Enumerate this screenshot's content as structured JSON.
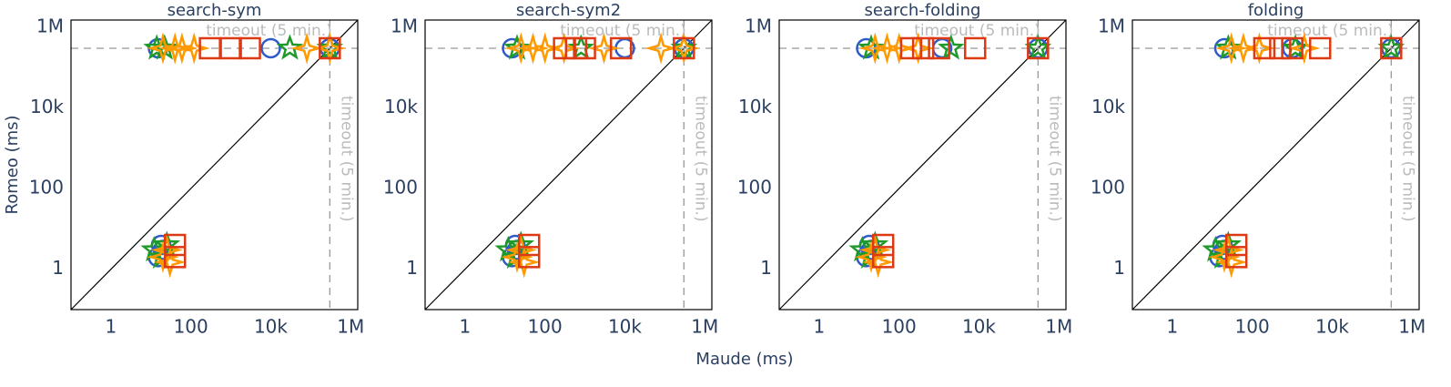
{
  "chart_data": [
    {
      "type": "scatter",
      "title": "search-sym",
      "log_x": true,
      "log_y": true,
      "xlim": [
        0.1,
        1500000
      ],
      "ylim": [
        0.1,
        1500000
      ],
      "xticks": [
        1,
        100,
        {
          "value": 10000,
          "label": "10k"
        },
        {
          "value": 1000000,
          "label": "1M"
        }
      ],
      "yticks": [
        1,
        100,
        {
          "value": 10000,
          "label": "10k"
        },
        {
          "value": 1000000,
          "label": "1M"
        }
      ],
      "hline": {
        "value": 300000,
        "label": "timeout (5 min.)"
      },
      "vline": {
        "value": 300000,
        "label": "timeout (5 min.)"
      },
      "series": [
        {
          "color": "#2e5bc9",
          "symbol": "circle",
          "x": [
            15,
            20,
            18,
            15,
            10000,
            300000
          ],
          "values": [
            2,
            3,
            4,
            300000,
            300000,
            300000
          ]
        },
        {
          "color": "#1f9a2a",
          "symbol": "star",
          "x": [
            12,
            18,
            25,
            14,
            22,
            30000,
            300000
          ],
          "values": [
            3,
            2,
            4,
            300000,
            300000,
            300000,
            300000
          ]
        },
        {
          "color": "#ff9900",
          "symbol": "star-diamond",
          "x": [
            20,
            25,
            30,
            20,
            40,
            60,
            120,
            80000,
            300000
          ],
          "values": [
            2,
            3,
            1.5,
            300000,
            300000,
            300000,
            300000,
            300000,
            300000
          ]
        },
        {
          "color": "#dd3a14",
          "symbol": "square",
          "x": [
            40,
            40,
            300,
            1000,
            3000,
            300000
          ],
          "values": [
            2,
            4,
            300000,
            300000,
            300000,
            300000
          ]
        }
      ]
    },
    {
      "type": "scatter",
      "title": "search-sym2",
      "log_x": true,
      "log_y": true,
      "xlim": [
        0.1,
        1500000
      ],
      "ylim": [
        0.1,
        1500000
      ],
      "xticks": [
        1,
        100,
        {
          "value": 10000,
          "label": "10k"
        },
        {
          "value": 1000000,
          "label": "1M"
        }
      ],
      "yticks": [
        1,
        100,
        {
          "value": 10000,
          "label": "10k"
        },
        {
          "value": 1000000,
          "label": "1M"
        }
      ],
      "hline": {
        "value": 300000,
        "label": "timeout (5 min.)"
      },
      "vline": {
        "value": 300000,
        "label": "timeout (5 min.)"
      },
      "series": [
        {
          "color": "#2e5bc9",
          "symbol": "circle",
          "x": [
            15,
            20,
            18,
            15,
            10000,
            300000
          ],
          "values": [
            2,
            3,
            4,
            300000,
            300000,
            300000
          ]
        },
        {
          "color": "#1f9a2a",
          "symbol": "star",
          "x": [
            12,
            18,
            25,
            20,
            800,
            300000
          ],
          "values": [
            3,
            2,
            4,
            300000,
            300000,
            300000
          ]
        },
        {
          "color": "#ff9900",
          "symbol": "star-diamond",
          "x": [
            20,
            25,
            30,
            25,
            50,
            100,
            300,
            3000,
            80000,
            300000
          ],
          "values": [
            2,
            3,
            1.5,
            300000,
            300000,
            300000,
            300000,
            300000,
            300000,
            300000
          ]
        },
        {
          "color": "#dd3a14",
          "symbol": "square",
          "x": [
            40,
            40,
            300,
            600,
            1000,
            8000,
            300000
          ],
          "values": [
            2,
            4,
            300000,
            300000,
            300000,
            300000,
            300000
          ]
        }
      ]
    },
    {
      "type": "scatter",
      "title": "search-folding",
      "log_x": true,
      "log_y": true,
      "xlim": [
        0.1,
        1500000
      ],
      "ylim": [
        0.1,
        1500000
      ],
      "xticks": [
        1,
        100,
        {
          "value": 10000,
          "label": "10k"
        },
        {
          "value": 1000000,
          "label": "1M"
        }
      ],
      "yticks": [
        1,
        100,
        {
          "value": 10000,
          "label": "10k"
        },
        {
          "value": 1000000,
          "label": "1M"
        }
      ],
      "hline": {
        "value": 300000,
        "label": "timeout (5 min.)"
      },
      "vline": {
        "value": 300000,
        "label": "timeout (5 min.)"
      },
      "series": [
        {
          "color": "#2e5bc9",
          "symbol": "circle",
          "x": [
            15,
            20,
            18,
            15,
            1200,
            300000
          ],
          "values": [
            2,
            3,
            4,
            300000,
            300000,
            300000
          ]
        },
        {
          "color": "#1f9a2a",
          "symbol": "star",
          "x": [
            12,
            18,
            25,
            20,
            2000,
            300000
          ],
          "values": [
            3,
            2,
            4,
            300000,
            300000,
            300000
          ]
        },
        {
          "color": "#ff9900",
          "symbol": "star-diamond",
          "x": [
            20,
            25,
            30,
            25,
            50,
            100,
            300
          ],
          "values": [
            2,
            3,
            1.5,
            300000,
            300000,
            300000,
            300000
          ]
        },
        {
          "color": "#dd3a14",
          "symbol": "square",
          "x": [
            40,
            40,
            200,
            400,
            1000,
            8000,
            300000
          ],
          "values": [
            2,
            4,
            300000,
            300000,
            300000,
            300000,
            300000
          ]
        }
      ]
    },
    {
      "type": "scatter",
      "title": "folding",
      "log_x": true,
      "log_y": true,
      "xlim": [
        0.1,
        1500000
      ],
      "ylim": [
        0.1,
        1500000
      ],
      "xticks": [
        1,
        100,
        {
          "value": 10000,
          "label": "10k"
        },
        {
          "value": 1000000,
          "label": "1M"
        }
      ],
      "yticks": [
        1,
        100,
        {
          "value": 10000,
          "label": "10k"
        },
        {
          "value": 1000000,
          "label": "1M"
        }
      ],
      "hline": {
        "value": 300000,
        "label": "timeout (5 min.)"
      },
      "vline": {
        "value": 300000,
        "label": "timeout (5 min.)"
      },
      "series": [
        {
          "color": "#2e5bc9",
          "symbol": "circle",
          "x": [
            15,
            20,
            18,
            20,
            1000,
            300000
          ],
          "values": [
            2,
            3,
            4,
            300000,
            300000,
            300000
          ]
        },
        {
          "color": "#1f9a2a",
          "symbol": "star",
          "x": [
            12,
            18,
            25,
            25,
            1200,
            300000
          ],
          "values": [
            3,
            2,
            4,
            300000,
            300000,
            300000
          ]
        },
        {
          "color": "#ff9900",
          "symbol": "star-diamond",
          "x": [
            20,
            25,
            30,
            30,
            60,
            150,
            2000
          ],
          "values": [
            2,
            3,
            1.5,
            300000,
            300000,
            300000,
            300000
          ]
        },
        {
          "color": "#dd3a14",
          "symbol": "square",
          "x": [
            40,
            40,
            200,
            500,
            1000,
            5000,
            300000
          ],
          "values": [
            2,
            4,
            300000,
            300000,
            300000,
            300000,
            300000
          ]
        }
      ]
    }
  ],
  "xlabel": "Maude (ms)",
  "ylabel": "Romeo (ms)"
}
